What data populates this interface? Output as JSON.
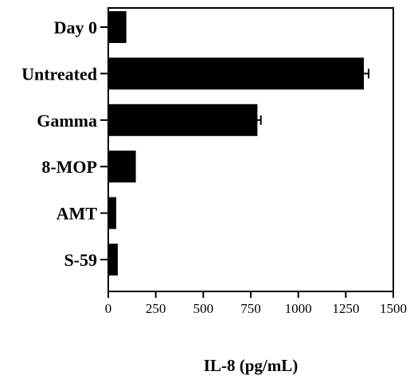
{
  "chart_data": {
    "type": "bar",
    "orientation": "horizontal",
    "categories": [
      "Day 0",
      "Untreated",
      "Gamma",
      "8-MOP",
      "AMT",
      "S-59"
    ],
    "values": [
      95,
      1345,
      785,
      145,
      42,
      50
    ],
    "error": [
      0,
      25,
      18,
      0,
      0,
      0
    ],
    "xlabel": "IL-8 (pg/mL)",
    "ylabel": "",
    "xlim": [
      0,
      1500
    ],
    "xticks": [
      0,
      250,
      500,
      750,
      1000,
      1250,
      1500
    ],
    "xtick_labels": [
      "0",
      "250",
      "500",
      "750",
      "1000",
      "1250",
      "1500"
    ],
    "grid": false,
    "bar_color": "#000000"
  }
}
